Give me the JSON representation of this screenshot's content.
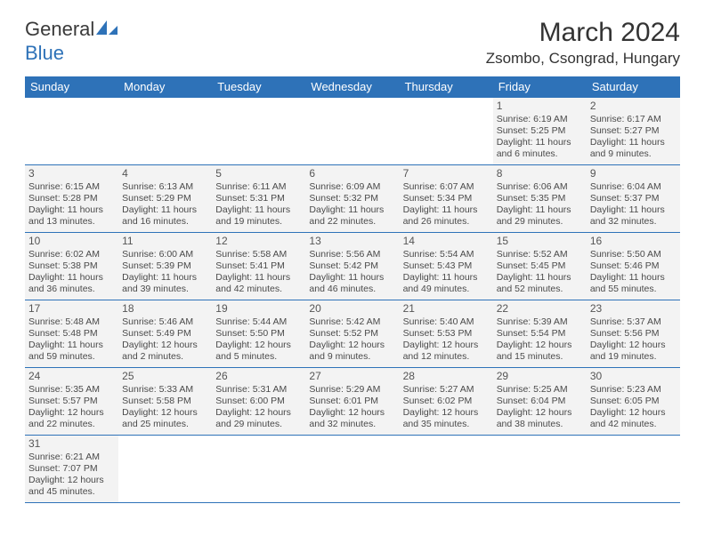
{
  "logo": {
    "text_main": "General",
    "text_accent": "Blue",
    "accent_color": "#2e72b8"
  },
  "title": "March 2024",
  "location": "Zsombo, Csongrad, Hungary",
  "colors": {
    "header_bg": "#2e72b8",
    "header_text": "#ffffff",
    "cell_bg": "#f3f3f3",
    "border": "#2e72b8",
    "body_text": "#4a4a4a"
  },
  "day_headers": [
    "Sunday",
    "Monday",
    "Tuesday",
    "Wednesday",
    "Thursday",
    "Friday",
    "Saturday"
  ],
  "weeks": [
    [
      null,
      null,
      null,
      null,
      null,
      {
        "n": "1",
        "sr": "Sunrise: 6:19 AM",
        "ss": "Sunset: 5:25 PM",
        "dl1": "Daylight: 11 hours",
        "dl2": "and 6 minutes."
      },
      {
        "n": "2",
        "sr": "Sunrise: 6:17 AM",
        "ss": "Sunset: 5:27 PM",
        "dl1": "Daylight: 11 hours",
        "dl2": "and 9 minutes."
      }
    ],
    [
      {
        "n": "3",
        "sr": "Sunrise: 6:15 AM",
        "ss": "Sunset: 5:28 PM",
        "dl1": "Daylight: 11 hours",
        "dl2": "and 13 minutes."
      },
      {
        "n": "4",
        "sr": "Sunrise: 6:13 AM",
        "ss": "Sunset: 5:29 PM",
        "dl1": "Daylight: 11 hours",
        "dl2": "and 16 minutes."
      },
      {
        "n": "5",
        "sr": "Sunrise: 6:11 AM",
        "ss": "Sunset: 5:31 PM",
        "dl1": "Daylight: 11 hours",
        "dl2": "and 19 minutes."
      },
      {
        "n": "6",
        "sr": "Sunrise: 6:09 AM",
        "ss": "Sunset: 5:32 PM",
        "dl1": "Daylight: 11 hours",
        "dl2": "and 22 minutes."
      },
      {
        "n": "7",
        "sr": "Sunrise: 6:07 AM",
        "ss": "Sunset: 5:34 PM",
        "dl1": "Daylight: 11 hours",
        "dl2": "and 26 minutes."
      },
      {
        "n": "8",
        "sr": "Sunrise: 6:06 AM",
        "ss": "Sunset: 5:35 PM",
        "dl1": "Daylight: 11 hours",
        "dl2": "and 29 minutes."
      },
      {
        "n": "9",
        "sr": "Sunrise: 6:04 AM",
        "ss": "Sunset: 5:37 PM",
        "dl1": "Daylight: 11 hours",
        "dl2": "and 32 minutes."
      }
    ],
    [
      {
        "n": "10",
        "sr": "Sunrise: 6:02 AM",
        "ss": "Sunset: 5:38 PM",
        "dl1": "Daylight: 11 hours",
        "dl2": "and 36 minutes."
      },
      {
        "n": "11",
        "sr": "Sunrise: 6:00 AM",
        "ss": "Sunset: 5:39 PM",
        "dl1": "Daylight: 11 hours",
        "dl2": "and 39 minutes."
      },
      {
        "n": "12",
        "sr": "Sunrise: 5:58 AM",
        "ss": "Sunset: 5:41 PM",
        "dl1": "Daylight: 11 hours",
        "dl2": "and 42 minutes."
      },
      {
        "n": "13",
        "sr": "Sunrise: 5:56 AM",
        "ss": "Sunset: 5:42 PM",
        "dl1": "Daylight: 11 hours",
        "dl2": "and 46 minutes."
      },
      {
        "n": "14",
        "sr": "Sunrise: 5:54 AM",
        "ss": "Sunset: 5:43 PM",
        "dl1": "Daylight: 11 hours",
        "dl2": "and 49 minutes."
      },
      {
        "n": "15",
        "sr": "Sunrise: 5:52 AM",
        "ss": "Sunset: 5:45 PM",
        "dl1": "Daylight: 11 hours",
        "dl2": "and 52 minutes."
      },
      {
        "n": "16",
        "sr": "Sunrise: 5:50 AM",
        "ss": "Sunset: 5:46 PM",
        "dl1": "Daylight: 11 hours",
        "dl2": "and 55 minutes."
      }
    ],
    [
      {
        "n": "17",
        "sr": "Sunrise: 5:48 AM",
        "ss": "Sunset: 5:48 PM",
        "dl1": "Daylight: 11 hours",
        "dl2": "and 59 minutes."
      },
      {
        "n": "18",
        "sr": "Sunrise: 5:46 AM",
        "ss": "Sunset: 5:49 PM",
        "dl1": "Daylight: 12 hours",
        "dl2": "and 2 minutes."
      },
      {
        "n": "19",
        "sr": "Sunrise: 5:44 AM",
        "ss": "Sunset: 5:50 PM",
        "dl1": "Daylight: 12 hours",
        "dl2": "and 5 minutes."
      },
      {
        "n": "20",
        "sr": "Sunrise: 5:42 AM",
        "ss": "Sunset: 5:52 PM",
        "dl1": "Daylight: 12 hours",
        "dl2": "and 9 minutes."
      },
      {
        "n": "21",
        "sr": "Sunrise: 5:40 AM",
        "ss": "Sunset: 5:53 PM",
        "dl1": "Daylight: 12 hours",
        "dl2": "and 12 minutes."
      },
      {
        "n": "22",
        "sr": "Sunrise: 5:39 AM",
        "ss": "Sunset: 5:54 PM",
        "dl1": "Daylight: 12 hours",
        "dl2": "and 15 minutes."
      },
      {
        "n": "23",
        "sr": "Sunrise: 5:37 AM",
        "ss": "Sunset: 5:56 PM",
        "dl1": "Daylight: 12 hours",
        "dl2": "and 19 minutes."
      }
    ],
    [
      {
        "n": "24",
        "sr": "Sunrise: 5:35 AM",
        "ss": "Sunset: 5:57 PM",
        "dl1": "Daylight: 12 hours",
        "dl2": "and 22 minutes."
      },
      {
        "n": "25",
        "sr": "Sunrise: 5:33 AM",
        "ss": "Sunset: 5:58 PM",
        "dl1": "Daylight: 12 hours",
        "dl2": "and 25 minutes."
      },
      {
        "n": "26",
        "sr": "Sunrise: 5:31 AM",
        "ss": "Sunset: 6:00 PM",
        "dl1": "Daylight: 12 hours",
        "dl2": "and 29 minutes."
      },
      {
        "n": "27",
        "sr": "Sunrise: 5:29 AM",
        "ss": "Sunset: 6:01 PM",
        "dl1": "Daylight: 12 hours",
        "dl2": "and 32 minutes."
      },
      {
        "n": "28",
        "sr": "Sunrise: 5:27 AM",
        "ss": "Sunset: 6:02 PM",
        "dl1": "Daylight: 12 hours",
        "dl2": "and 35 minutes."
      },
      {
        "n": "29",
        "sr": "Sunrise: 5:25 AM",
        "ss": "Sunset: 6:04 PM",
        "dl1": "Daylight: 12 hours",
        "dl2": "and 38 minutes."
      },
      {
        "n": "30",
        "sr": "Sunrise: 5:23 AM",
        "ss": "Sunset: 6:05 PM",
        "dl1": "Daylight: 12 hours",
        "dl2": "and 42 minutes."
      }
    ],
    [
      {
        "n": "31",
        "sr": "Sunrise: 6:21 AM",
        "ss": "Sunset: 7:07 PM",
        "dl1": "Daylight: 12 hours",
        "dl2": "and 45 minutes."
      },
      null,
      null,
      null,
      null,
      null,
      null
    ]
  ]
}
